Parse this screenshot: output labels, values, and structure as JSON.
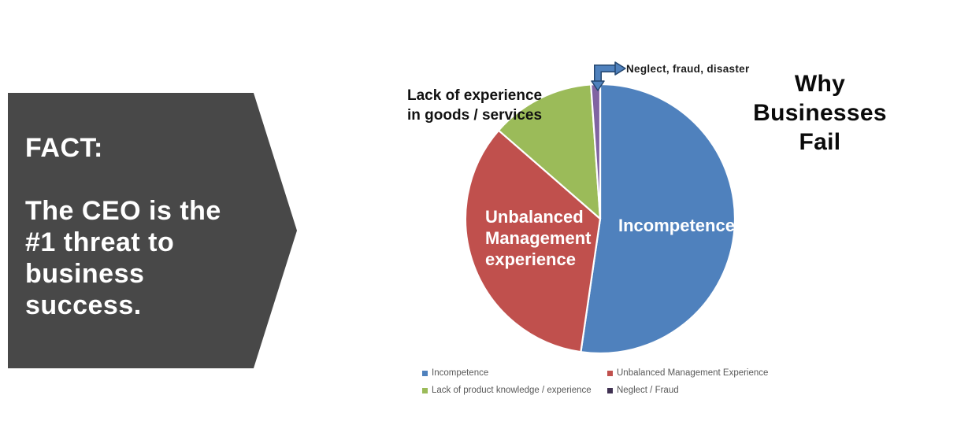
{
  "fact_banner": {
    "heading": "FACT:",
    "body": "The CEO is the\n#1 threat to\nbusiness\nsuccess.",
    "background_color": "#484848"
  },
  "chart_title": "Why\nBusinesses\nFail",
  "chart_data": {
    "type": "pie",
    "title": "Why Businesses Fail",
    "start_angle_deg": 0,
    "direction": "clockwise",
    "legend_position": "bottom",
    "slices": [
      {
        "label": "Incompetence",
        "value_pct": 52.3,
        "color": "#4F81BD",
        "on_chart_label": "Incompetence",
        "on_chart_label_color": "#ffffff"
      },
      {
        "label": "Unbalanced Management Experience",
        "value_pct": 34.1,
        "color": "#C0504D",
        "on_chart_label": "Unbalanced\nManagement\nexperience",
        "on_chart_label_color": "#ffffff"
      },
      {
        "label": "Lack of product knowledge / experience",
        "value_pct": 12.5,
        "color": "#9BBB59",
        "callout_label": "Lack of experience\nin goods / services"
      },
      {
        "label": "Neglect / Fraud",
        "value_pct": 1.1,
        "color": "#8064A2",
        "callout_label": "Neglect, fraud, disaster"
      }
    ],
    "legend": [
      {
        "label": "Incompetence",
        "color": "#4F81BD"
      },
      {
        "label": "Unbalanced Management Experience",
        "color": "#C0504D"
      },
      {
        "label": "Lack of product knowledge / experience",
        "color": "#9BBB59"
      },
      {
        "label": "Neglect / Fraud",
        "color": "#403152"
      }
    ],
    "accent_colors": {
      "callout_arrow_fill": "#4F81BD",
      "callout_arrow_outline": "#24466E",
      "slice_border": "#FFFFFF"
    }
  }
}
